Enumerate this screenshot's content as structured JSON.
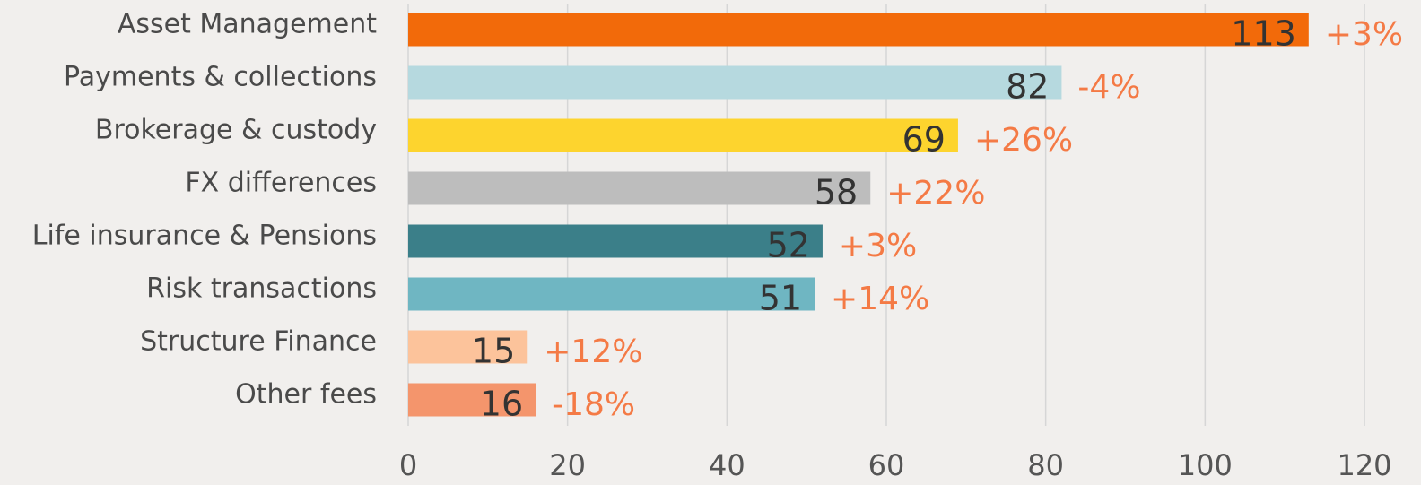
{
  "chart_data": {
    "type": "barh",
    "categories": [
      "Asset Management",
      "Payments & collections",
      "Brokerage & custody",
      "FX differences",
      "Life insurance & Pensions",
      "Risk transactions",
      "Structure Finance",
      "Other fees"
    ],
    "values": [
      113,
      82,
      69,
      58,
      52,
      51,
      15,
      16
    ],
    "colors": [
      "#f26a0a",
      "#b6d9df",
      "#fdd42e",
      "#bdbdbd",
      "#3b7f89",
      "#6fb6c2",
      "#fcc39b",
      "#f4956c"
    ],
    "change_labels": [
      "+3%",
      "-4%",
      "+26%",
      "+22%",
      "+3%",
      "+14%",
      "+12%",
      "-18%"
    ],
    "xlim": [
      0,
      120
    ],
    "xticks": [
      0,
      20,
      40,
      60,
      80,
      100,
      120
    ],
    "grid": true
  }
}
